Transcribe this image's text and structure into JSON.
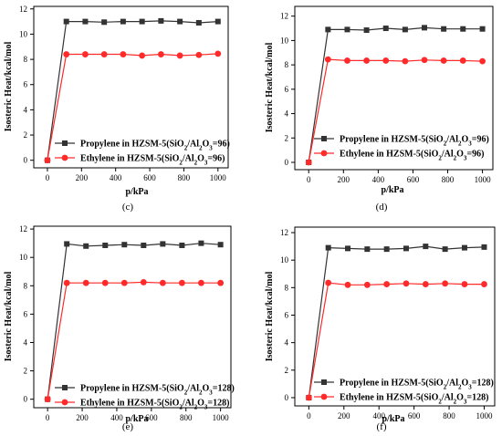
{
  "chart_data": [
    {
      "type": "line",
      "panel_label": "(c)",
      "xlabel": "p/kPa",
      "ylabel": "Isosteric Heat/kcal/mol",
      "xlim": [
        -80,
        1060
      ],
      "ylim": [
        -0.6,
        12.2
      ],
      "xticks": [
        0,
        200,
        400,
        600,
        800,
        1000
      ],
      "yticks": [
        0,
        2,
        4,
        6,
        8,
        10,
        12
      ],
      "legend_position": "lower-right",
      "grid": false,
      "x": [
        0,
        111,
        222,
        333,
        444,
        555,
        666,
        777,
        888,
        1000
      ],
      "series": [
        {
          "name": "Propylene in HZSM-5(SiO2/Al2O3=96)",
          "color": "#333333",
          "marker": "square",
          "values": [
            0,
            11.0,
            11.0,
            10.95,
            11.0,
            11.0,
            11.05,
            11.0,
            10.9,
            11.0
          ]
        },
        {
          "name": "Ethylene in HZSM-5(SiO2/Al2O3=96)",
          "color": "#ff2a2a",
          "marker": "circle",
          "values": [
            0,
            8.4,
            8.4,
            8.4,
            8.4,
            8.3,
            8.4,
            8.3,
            8.35,
            8.45
          ]
        }
      ]
    },
    {
      "type": "line",
      "panel_label": "(d)",
      "xlabel": "p/kPa",
      "ylabel": "Isosteric Heat/kcal/mol",
      "xlim": [
        -80,
        1060
      ],
      "ylim": [
        -0.6,
        12.8
      ],
      "xticks": [
        0,
        200,
        400,
        600,
        800,
        1000
      ],
      "yticks": [
        0,
        2,
        4,
        6,
        8,
        10,
        12
      ],
      "legend_position": "lower-right",
      "grid": false,
      "x": [
        0,
        111,
        222,
        333,
        444,
        555,
        666,
        777,
        888,
        1000
      ],
      "series": [
        {
          "name": "Propylene in HZSM-5(SiO2/Al2O3=96)",
          "color": "#333333",
          "marker": "square",
          "values": [
            0,
            10.9,
            10.9,
            10.85,
            11.0,
            10.9,
            11.05,
            10.95,
            10.95,
            10.95
          ]
        },
        {
          "name": "Ethylene in HZSM-5(SiO2/Al2O3=96)",
          "color": "#ff2a2a",
          "marker": "circle",
          "values": [
            0,
            8.45,
            8.35,
            8.35,
            8.35,
            8.3,
            8.4,
            8.35,
            8.35,
            8.3
          ]
        }
      ]
    },
    {
      "type": "line",
      "panel_label": "(e)",
      "xlabel": "p/kPa",
      "ylabel": "Isosteric Heat/kcal/mol",
      "xlim": [
        -80,
        1060
      ],
      "ylim": [
        -0.6,
        12.2
      ],
      "xticks": [
        0,
        200,
        400,
        600,
        800,
        1000
      ],
      "yticks": [
        0,
        2,
        4,
        6,
        8,
        10,
        12
      ],
      "legend_position": "lower-right",
      "grid": false,
      "x": [
        0,
        111,
        222,
        333,
        444,
        555,
        666,
        777,
        888,
        1000
      ],
      "series": [
        {
          "name": "Propylene in HZSM-5(SiO2/Al2O3=128)",
          "color": "#333333",
          "marker": "square",
          "values": [
            0,
            10.95,
            10.8,
            10.85,
            10.9,
            10.85,
            10.95,
            10.85,
            11.0,
            10.9
          ]
        },
        {
          "name": "Ethylene in HZSM-5(SiO2/Al2O3=128)",
          "color": "#ff2a2a",
          "marker": "circle",
          "values": [
            0,
            8.2,
            8.2,
            8.2,
            8.2,
            8.25,
            8.2,
            8.2,
            8.2,
            8.2
          ]
        }
      ]
    },
    {
      "type": "line",
      "panel_label": "(f)",
      "xlabel": "p/kPa",
      "ylabel": "Isosteric Heat/kcal/mol",
      "xlim": [
        -80,
        1060
      ],
      "ylim": [
        -0.6,
        12.4
      ],
      "xticks": [
        0,
        200,
        400,
        600,
        800,
        1000
      ],
      "yticks": [
        0,
        2,
        4,
        6,
        8,
        10,
        12
      ],
      "legend_position": "lower-right",
      "grid": false,
      "x": [
        0,
        111,
        222,
        333,
        444,
        555,
        666,
        777,
        888,
        1000
      ],
      "series": [
        {
          "name": "Propylene in HZSM-5(SiO2/Al2O3=128)",
          "color": "#333333",
          "marker": "square",
          "values": [
            0,
            10.9,
            10.85,
            10.8,
            10.8,
            10.85,
            11.0,
            10.8,
            10.9,
            10.95
          ]
        },
        {
          "name": "Ethylene in HZSM-5(SiO2/Al2O3=128)",
          "color": "#ff2a2a",
          "marker": "circle",
          "values": [
            0,
            8.35,
            8.2,
            8.2,
            8.25,
            8.3,
            8.25,
            8.3,
            8.25,
            8.25
          ]
        }
      ]
    }
  ]
}
